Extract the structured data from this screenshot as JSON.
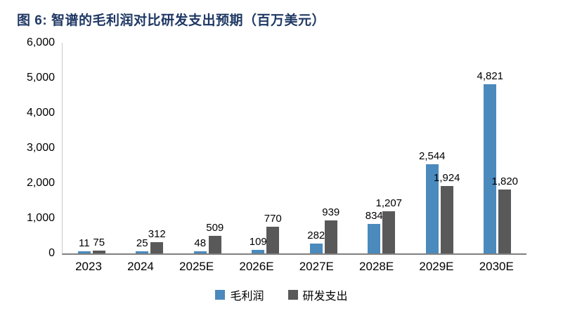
{
  "title": "图 6: 智谱的毛利润对比研发支出预期（百万美元）",
  "colors": {
    "title": "#1f3864",
    "axis_line": "#808080",
    "bar_blue": "#4a8abd",
    "bar_gray": "#595959"
  },
  "chart_data": {
    "type": "bar",
    "title": "图 6: 智谱的毛利润对比研发支出预期（百万美元）",
    "categories": [
      "2023",
      "2024",
      "2025E",
      "2026E",
      "2027E",
      "2028E",
      "2029E",
      "2030E"
    ],
    "series": [
      {
        "key": "gross-profit",
        "name": "毛利润",
        "color": "#4a8abd",
        "values": [
          11,
          25,
          48,
          109,
          282,
          834,
          2544,
          4821
        ],
        "labels": [
          "11",
          "25",
          "48",
          "109",
          "282",
          "834",
          "2,544",
          "4,821"
        ]
      },
      {
        "key": "rnd-spend",
        "name": "研发支出",
        "color": "#595959",
        "values": [
          75,
          312,
          509,
          770,
          939,
          1207,
          1924,
          1820
        ],
        "labels": [
          "75",
          "312",
          "509",
          "770",
          "939",
          "1,207",
          "1,924",
          "1,820"
        ]
      }
    ],
    "xlabel": "",
    "ylabel": "",
    "ylim": [
      0,
      6000
    ],
    "yticks": [
      0,
      1000,
      2000,
      3000,
      4000,
      5000,
      6000
    ],
    "ytick_labels": [
      "0",
      "1,000",
      "2,000",
      "3,000",
      "4,000",
      "5,000",
      "6,000"
    ],
    "grid": false,
    "legend_position": "bottom"
  },
  "legend": {
    "items": [
      {
        "key": "gross-profit",
        "label": "毛利润",
        "color": "#4a8abd"
      },
      {
        "key": "rnd-spend",
        "label": "研发支出",
        "color": "#595959"
      }
    ]
  }
}
